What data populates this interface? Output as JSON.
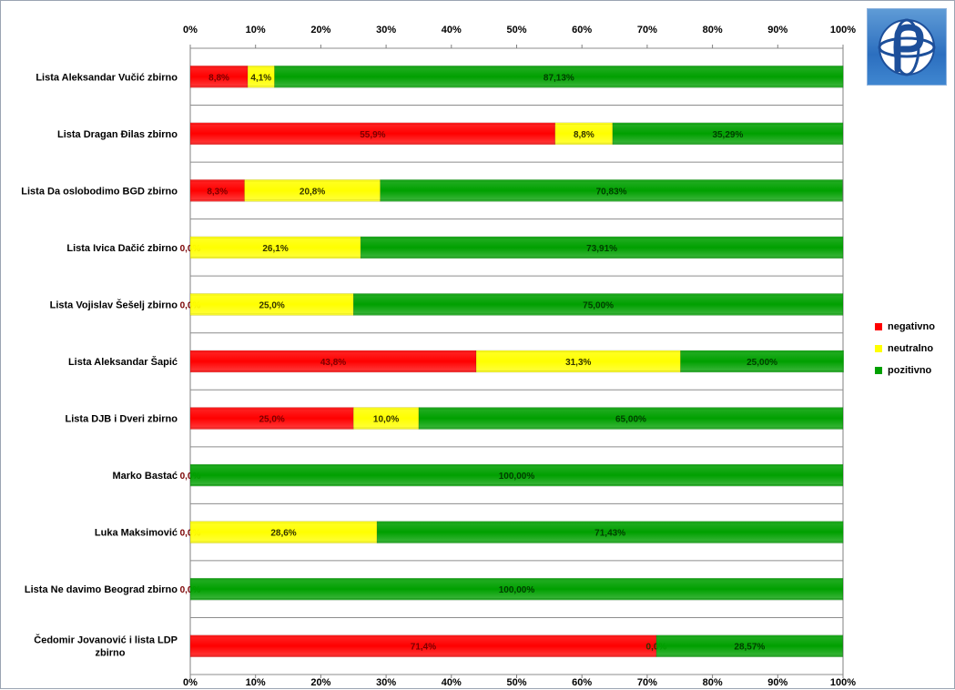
{
  "chart_data": {
    "type": "bar",
    "orientation": "horizontal",
    "stacked": "percent",
    "title": "",
    "xlabel": "",
    "ylabel": "",
    "xlim": [
      0,
      100
    ],
    "x_ticks": [
      "0%",
      "10%",
      "20%",
      "30%",
      "40%",
      "50%",
      "60%",
      "70%",
      "80%",
      "90%",
      "100%"
    ],
    "grid": true,
    "legend_position": "right",
    "categories": [
      [
        "Lista Aleksandar  Vučić  zbirno"
      ],
      [
        "Lista Dragan  Đilas  zbirno"
      ],
      [
        "Lista Da oslobodimo  BGD  zbirno"
      ],
      [
        "Lista Ivica  Dačić  zbirno"
      ],
      [
        "Lista Vojislav  Šešelj zbirno"
      ],
      [
        "Lista Aleksandar  Šapić"
      ],
      [
        "Lista DJB  i Dveri zbirno"
      ],
      [
        "Marko  Bastać"
      ],
      [
        "Luka Maksimović"
      ],
      [
        "Lista Ne davimo  Beograd  zbirno"
      ],
      [
        "Čedomir Jovanović  i lista LDP",
        "zbirno"
      ]
    ],
    "series": [
      {
        "name": "negativno",
        "color": "#ff0000",
        "label_color": "#7a0000",
        "values": [
          8.8,
          55.9,
          8.3,
          0.0,
          0.0,
          43.8,
          25.0,
          0.0,
          0.0,
          0.0,
          71.4
        ],
        "labels": [
          "8,8%",
          "55,9%",
          "8,3%",
          "0,0%",
          "0,0%",
          "43,8%",
          "25,0%",
          "0,0%",
          "0,0%",
          "0,0%",
          "71,4%"
        ]
      },
      {
        "name": "neutralno",
        "color": "#ffff00",
        "label_color": "#333300",
        "values": [
          4.1,
          8.8,
          20.8,
          26.1,
          25.0,
          31.3,
          10.0,
          0.0,
          28.6,
          0.0,
          0.0
        ],
        "labels": [
          "4,1%",
          "8,8%",
          "20,8%",
          "26,1%",
          "25,0%",
          "31,3%",
          "10,0%",
          "",
          "28,6%",
          "",
          "0,0%"
        ]
      },
      {
        "name": "pozitivno",
        "color": "#00a000",
        "label_color": "#003d00",
        "values": [
          87.13,
          35.29,
          70.83,
          73.91,
          75.0,
          25.0,
          65.0,
          100.0,
          71.43,
          100.0,
          28.57
        ],
        "labels": [
          "87,13%",
          "35,29%",
          "70,83%",
          "73,91%",
          "75,00%",
          "25,00%",
          "65,00%",
          "100,00%",
          "71,43%",
          "100,00%",
          "28,57%"
        ]
      }
    ]
  }
}
